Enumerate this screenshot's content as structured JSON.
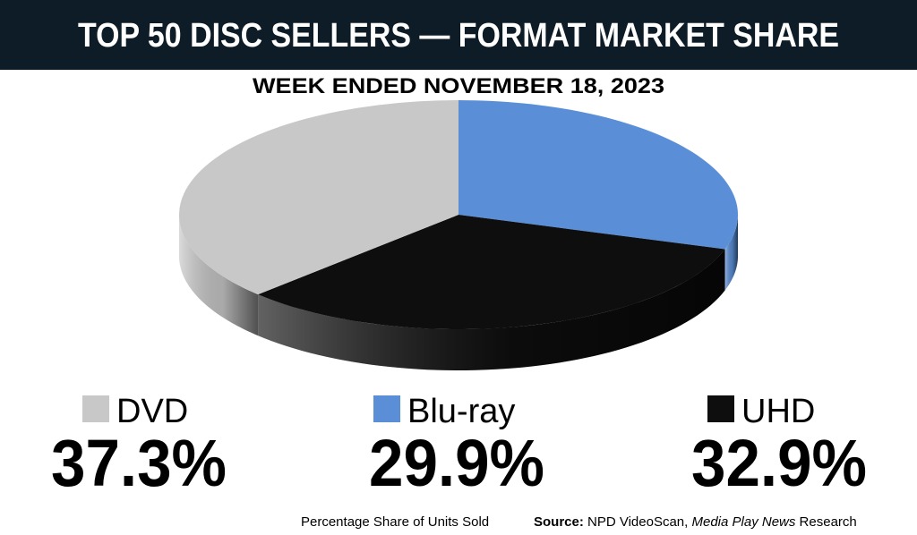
{
  "chart_data": {
    "type": "pie",
    "title": "TOP 50 DISC SELLERS — FORMAT MARKET SHARE",
    "subtitle": "WEEK ENDED NOVEMBER 18, 2023",
    "categories": [
      "DVD",
      "Blu-ray",
      "UHD"
    ],
    "values": [
      37.3,
      29.9,
      32.9
    ],
    "value_labels": [
      "37.3%",
      "29.9%",
      "32.9%"
    ],
    "colors": [
      "#c8c8c8",
      "#5a8fd8",
      "#0e0e0e"
    ],
    "note": "Percentage Share of Units Sold",
    "source": {
      "label": "Source:",
      "parts": [
        "NPD VideoScan, ",
        "Media Play News",
        " Research"
      ]
    }
  }
}
